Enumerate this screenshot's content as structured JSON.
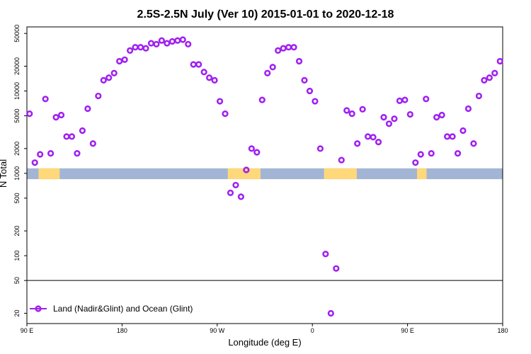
{
  "chart_data": {
    "type": "scatter",
    "title": "2.5S-2.5N July (Ver 10)   2015-01-01 to 2020-12-18",
    "xlabel": "Longitude (deg E)",
    "ylabel": "N Total",
    "x_scale": "longitude, continuous from 90E eastward through 180 and 0 back to 180 (x = degrees east of 90E)",
    "xlim": [
      0,
      450
    ],
    "y_scale": "log",
    "ylim": [
      15,
      60000
    ],
    "x_ticks": [
      {
        "x": 0,
        "label": "90 E"
      },
      {
        "x": 90,
        "label": "180"
      },
      {
        "x": 180,
        "label": "90 W"
      },
      {
        "x": 270,
        "label": "0"
      },
      {
        "x": 360,
        "label": "90 E"
      },
      {
        "x": 450,
        "label": "180"
      }
    ],
    "y_ticks": [
      {
        "value": 20,
        "label": "20"
      },
      {
        "value": 50,
        "label": "50"
      },
      {
        "value": 100,
        "label": "100"
      },
      {
        "value": 200,
        "label": "200"
      },
      {
        "value": 500,
        "label": "500"
      },
      {
        "value": 1000,
        "label": "1000"
      },
      {
        "value": 2000,
        "label": "2000"
      },
      {
        "value": 5000,
        "label": "5000"
      },
      {
        "value": 10000,
        "label": "10000"
      },
      {
        "value": 20000,
        "label": "20000"
      },
      {
        "value": 50000,
        "label": "50000"
      }
    ],
    "reference_line_y": 50,
    "colors": {
      "points": "#a020f0",
      "ocean_band": "#a2b5d5",
      "land_band": "#ffd87a"
    },
    "land_ocean_band": {
      "y_range": [
        850,
        1150
      ],
      "land_segments": [
        [
          11,
          31
        ],
        [
          190,
          221
        ],
        [
          281,
          312
        ],
        [
          369,
          378
        ]
      ]
    },
    "series": [
      {
        "name": "Land (Nadir&Glint) and Ocean (Glint)",
        "points": [
          [
            2.5,
            5300
          ],
          [
            7.5,
            1350
          ],
          [
            12.5,
            1700
          ],
          [
            17.5,
            8000
          ],
          [
            22.5,
            1750
          ],
          [
            27.5,
            4800
          ],
          [
            32.5,
            5100
          ],
          [
            37.5,
            2800
          ],
          [
            42.5,
            2800
          ],
          [
            47.5,
            1750
          ],
          [
            52.5,
            3300
          ],
          [
            57.5,
            6100
          ],
          [
            62.5,
            2300
          ],
          [
            67.5,
            8700
          ],
          [
            72.5,
            13500
          ],
          [
            77.5,
            14500
          ],
          [
            82.5,
            16500
          ],
          [
            87.5,
            23000
          ],
          [
            92.5,
            24000
          ],
          [
            97.5,
            31000
          ],
          [
            102.5,
            34000
          ],
          [
            107.5,
            34000
          ],
          [
            112.5,
            33000
          ],
          [
            117.5,
            38000
          ],
          [
            122.5,
            37000
          ],
          [
            127.5,
            41000
          ],
          [
            132.5,
            38000
          ],
          [
            137.5,
            40000
          ],
          [
            142.5,
            41000
          ],
          [
            147.5,
            42000
          ],
          [
            152.5,
            37000
          ],
          [
            157.5,
            21000
          ],
          [
            162.5,
            21000
          ],
          [
            167.5,
            17000
          ],
          [
            172.5,
            14500
          ],
          [
            177.5,
            13500
          ],
          [
            182.5,
            7500
          ],
          [
            187.5,
            5300
          ],
          [
            192.5,
            580
          ],
          [
            197.5,
            720
          ],
          [
            202.5,
            520
          ],
          [
            207.5,
            1100
          ],
          [
            212.5,
            2000
          ],
          [
            217.5,
            1800
          ],
          [
            222.5,
            7800
          ],
          [
            227.5,
            16500
          ],
          [
            232.5,
            19500
          ],
          [
            237.5,
            31000
          ],
          [
            242.5,
            33000
          ],
          [
            247.5,
            34000
          ],
          [
            252.5,
            34000
          ],
          [
            257.5,
            23000
          ],
          [
            262.5,
            13500
          ],
          [
            267.5,
            10000
          ],
          [
            272.5,
            7500
          ],
          [
            277.5,
            2000
          ],
          [
            282.5,
            105
          ],
          [
            287.5,
            20
          ],
          [
            292.5,
            70
          ],
          [
            297.5,
            1450
          ],
          [
            302.5,
            5800
          ],
          [
            307.5,
            5300
          ],
          [
            312.5,
            2300
          ],
          [
            317.5,
            6000
          ],
          [
            322.5,
            2800
          ],
          [
            327.5,
            2750
          ],
          [
            332.5,
            2400
          ],
          [
            337.5,
            4800
          ],
          [
            342.5,
            4000
          ],
          [
            347.5,
            4600
          ],
          [
            352.5,
            7600
          ],
          [
            357.5,
            7800
          ],
          [
            362.5,
            5200
          ],
          [
            367.5,
            1350
          ],
          [
            372.5,
            1700
          ],
          [
            377.5,
            8000
          ],
          [
            382.5,
            1750
          ],
          [
            387.5,
            4800
          ],
          [
            392.5,
            5100
          ],
          [
            397.5,
            2800
          ],
          [
            402.5,
            2800
          ],
          [
            407.5,
            1750
          ],
          [
            412.5,
            3300
          ],
          [
            417.5,
            6100
          ],
          [
            422.5,
            2300
          ],
          [
            427.5,
            8700
          ],
          [
            432.5,
            13500
          ],
          [
            437.5,
            14500
          ],
          [
            442.5,
            16500
          ],
          [
            447.5,
            23000
          ]
        ]
      }
    ],
    "legend": {
      "position": "bottom-left",
      "entries": [
        "Land (Nadir&Glint) and Ocean (Glint)"
      ]
    }
  }
}
